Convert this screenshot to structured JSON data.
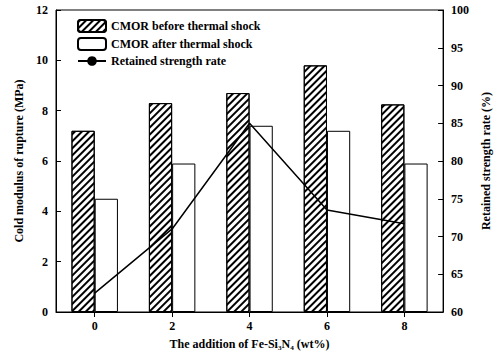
{
  "chart_data": {
    "type": "bar",
    "categories": [
      "0",
      "2",
      "4",
      "6",
      "8"
    ],
    "xlabel": "The addition of Fe-Si₃N₄ (wt%)",
    "ylabel": "Cold modulus of rupture (MPa)",
    "y2label": "Retained strength rate (%)",
    "ylim": [
      0,
      12
    ],
    "yticks": [
      0,
      2,
      4,
      6,
      8,
      10,
      12
    ],
    "y2lim": [
      60,
      100
    ],
    "y2ticks": [
      60,
      65,
      70,
      75,
      80,
      85,
      90,
      95,
      100
    ],
    "legend": "upper left",
    "grid": false,
    "series": [
      {
        "name": "CMOR before thermal shock",
        "type": "bar",
        "color": "#ffffff",
        "values": [
          7.2,
          8.3,
          8.7,
          9.8,
          8.25
        ]
      },
      {
        "name": "CMOR after thermal shock",
        "type": "bar",
        "color": "#ffffff",
        "values": [
          4.5,
          5.9,
          7.4,
          7.2,
          5.9
        ]
      },
      {
        "name": "Retained strength rate",
        "type": "line",
        "axis": "y2",
        "color": "#000000",
        "marker": "none",
        "line_style": "solid",
        "values": [
          62.5,
          71,
          85,
          73.5,
          71.7
        ]
      }
    ]
  }
}
